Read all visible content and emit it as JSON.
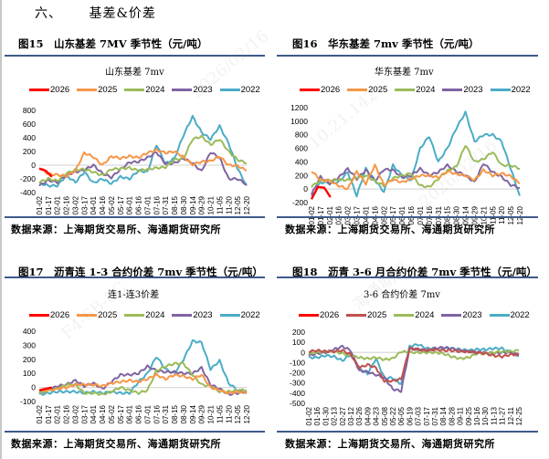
{
  "section": {
    "number": "六、",
    "title": "基差&价差"
  },
  "source_text": "数据来源：上海期货交易所、海通期货研究所",
  "legend_years": [
    "2026",
    "2025",
    "2024",
    "2023",
    "2022"
  ],
  "colors": {
    "2026": "#ff0000",
    "2025": "#f79646",
    "2025_alt": "#c0504d",
    "2024": "#9bbb59",
    "2023": "#8064a2",
    "2022": "#4bacc6",
    "zero_line": "#d9d9d9",
    "rule": "#3d5a8a"
  },
  "watermark": {
    "lines": [
      "2026/02/16",
      "10.21.142",
      "F4-6B-8C",
      "海通期货"
    ]
  },
  "chart_data": [
    {
      "id": "fig15",
      "figure_title": "图15　山东基差 7MV 季节性（元/吨）",
      "title": "山东基差 7mv",
      "type": "line",
      "xlabel": "",
      "ylabel": "",
      "ylim": [
        -400,
        800
      ],
      "yticks": [
        800,
        600,
        400,
        200,
        0,
        -200,
        -400
      ],
      "x_ticks": [
        "01-02",
        "01-17",
        "02-01",
        "02-16",
        "03-02",
        "03-17",
        "04-01",
        "04-16",
        "05-02",
        "05-17",
        "06-01",
        "06-16",
        "07-01",
        "07-16",
        "07-31",
        "08-15",
        "08-30",
        "09-14",
        "09-29",
        "10-21",
        "11-05",
        "11-20",
        "12-05",
        "12-20"
      ],
      "legend": "top",
      "grid": false,
      "series": [
        {
          "name": "2026",
          "values": [
            -50,
            -80,
            -170
          ]
        },
        {
          "name": "2025",
          "values": [
            -30,
            -130,
            -140,
            -160,
            -80,
            180,
            120,
            0,
            130,
            100,
            130,
            110,
            180,
            220,
            180,
            200,
            120,
            10,
            50,
            60,
            130,
            0,
            -10,
            -80
          ]
        },
        {
          "name": "2024",
          "values": [
            -250,
            -200,
            -230,
            -120,
            -70,
            -60,
            -100,
            -150,
            -60,
            -50,
            -40,
            -80,
            -60,
            -40,
            -30,
            80,
            100,
            380,
            420,
            300,
            380,
            200,
            80,
            30
          ]
        },
        {
          "name": "2023",
          "values": [
            -300,
            -220,
            -250,
            -140,
            -100,
            -70,
            0,
            -120,
            -180,
            -60,
            40,
            50,
            110,
            190,
            20,
            30,
            100,
            30,
            -90,
            190,
            110,
            -200,
            -200,
            -280
          ]
        },
        {
          "name": "2022",
          "values": [
            -260,
            -300,
            -300,
            -150,
            -250,
            -100,
            -260,
            -200,
            -270,
            -170,
            -200,
            -80,
            -100,
            300,
            20,
            100,
            440,
            710,
            480,
            380,
            570,
            320,
            -50,
            -300
          ]
        }
      ]
    },
    {
      "id": "fig16",
      "figure_title": "图16　华东基差 7mv 季节性（元/吨）",
      "title": "华东基差 7mv",
      "type": "line",
      "xlabel": "",
      "ylabel": "",
      "ylim": [
        -200,
        1200
      ],
      "yticks": [
        1200,
        1000,
        800,
        600,
        400,
        200,
        0,
        -200
      ],
      "x_ticks": [
        "01-02",
        "01-17",
        "02-01",
        "02-16",
        "03-02",
        "03-17",
        "04-01",
        "04-16",
        "05-02",
        "05-17",
        "06-01",
        "06-16",
        "07-01",
        "07-16",
        "07-31",
        "08-15",
        "08-30",
        "09-14",
        "09-29",
        "10-21",
        "11-05",
        "11-20",
        "12-05",
        "12-20"
      ],
      "legend": "top",
      "grid": false,
      "series": [
        {
          "name": "2026",
          "values": [
            -150,
            30,
            20,
            -120
          ]
        },
        {
          "name": "2025",
          "values": [
            270,
            130,
            120,
            50,
            0,
            260,
            80,
            350,
            60,
            140,
            100,
            150,
            200,
            200,
            170,
            260,
            220,
            200,
            130,
            280,
            200,
            230,
            190,
            80
          ]
        },
        {
          "name": "2024",
          "values": [
            40,
            120,
            130,
            140,
            130,
            170,
            200,
            120,
            50,
            160,
            200,
            230,
            50,
            30,
            150,
            270,
            330,
            650,
            400,
            440,
            550,
            350,
            350,
            300
          ]
        },
        {
          "name": "2023",
          "values": [
            -80,
            180,
            80,
            170,
            300,
            150,
            280,
            120,
            290,
            280,
            170,
            200,
            300,
            200,
            250,
            350,
            260,
            200,
            100,
            380,
            250,
            180,
            60,
            20
          ]
        },
        {
          "name": "2022",
          "values": [
            -120,
            100,
            90,
            100,
            250,
            -100,
            300,
            130,
            -40,
            350,
            200,
            130,
            600,
            780,
            400,
            600,
            900,
            1130,
            700,
            800,
            800,
            700,
            300,
            -100
          ]
        }
      ]
    },
    {
      "id": "fig17",
      "figure_title": "图17　沥青连 1-3 合约价差 7mv 季节性（元/吨）",
      "title": "连1-连3价差",
      "type": "line",
      "xlabel": "",
      "ylabel": "",
      "ylim": [
        -100,
        400
      ],
      "yticks": [
        400,
        300,
        200,
        100,
        0,
        -100
      ],
      "x_ticks": [
        "01-02",
        "01-17",
        "02-01",
        "02-16",
        "03-02",
        "03-17",
        "04-01",
        "04-16",
        "05-02",
        "05-17",
        "06-01",
        "06-16",
        "07-01",
        "07-16",
        "07-31",
        "08-15",
        "08-30",
        "09-14",
        "09-29",
        "10-21",
        "11-05",
        "11-20",
        "12-05",
        "12-20"
      ],
      "legend": "top",
      "grid": false,
      "series": [
        {
          "name": "2026",
          "values": [
            -20,
            -10,
            0
          ]
        },
        {
          "name": "2025",
          "values": [
            -20,
            -20,
            -10,
            0,
            20,
            20,
            20,
            10,
            30,
            40,
            50,
            40,
            60,
            90,
            60,
            90,
            80,
            60,
            90,
            0,
            -20,
            -40,
            -30,
            -40
          ]
        },
        {
          "name": "2024",
          "values": [
            -40,
            -20,
            -10,
            20,
            20,
            -40,
            -40,
            -50,
            -30,
            0,
            -20,
            -40,
            -20,
            120,
            150,
            170,
            170,
            90,
            20,
            10,
            -30,
            -30,
            -20,
            -20
          ]
        },
        {
          "name": "2023",
          "values": [
            -40,
            -20,
            10,
            20,
            50,
            10,
            30,
            -10,
            40,
            90,
            90,
            100,
            150,
            120,
            110,
            110,
            100,
            100,
            140,
            20,
            -10,
            -50,
            -40,
            -30
          ]
        },
        {
          "name": "2022",
          "values": [
            -50,
            -40,
            -30,
            -30,
            -30,
            -40,
            -30,
            -40,
            -30,
            -40,
            -40,
            40,
            100,
            220,
            130,
            100,
            200,
            330,
            320,
            130,
            190,
            30,
            -20,
            -40
          ]
        }
      ]
    },
    {
      "id": "fig18",
      "figure_title": "图18　沥青 3-6 月合约价差 7mv 季节性（元/吨）",
      "title": "3-6 合约价差 7mv",
      "type": "line",
      "xlabel": "",
      "ylabel": "",
      "ylim": [
        -500,
        200
      ],
      "yticks": [
        200,
        100,
        0,
        -100,
        -200,
        -300,
        -400,
        -500
      ],
      "x_ticks": [
        "01-02",
        "01-16",
        "01-30",
        "02-13",
        "02-27",
        "03-12",
        "03-26",
        "04-09",
        "04-23",
        "05-08",
        "05-22",
        "06-05",
        "06-19",
        "07-03",
        "07-17",
        "07-31",
        "08-14",
        "08-28",
        "09-11",
        "09-25",
        "10-16",
        "10-30",
        "11-13",
        "11-27",
        "12-11",
        "12-25"
      ],
      "legend": "top",
      "grid": false,
      "series": [
        {
          "name": "2026",
          "values": []
        },
        {
          "name": "2025",
          "values": [
            10,
            20,
            10,
            10,
            20,
            -20,
            -150,
            -120,
            -150,
            -280,
            -280,
            -260,
            40,
            30,
            20,
            30,
            20,
            20,
            10,
            10,
            0,
            -10,
            -30,
            -40,
            -20,
            -20
          ]
        },
        {
          "name": "2024",
          "values": [
            -10,
            0,
            10,
            10,
            -10,
            -30,
            -50,
            -60,
            -50,
            -70,
            -60,
            10,
            0,
            0,
            0,
            0,
            -10,
            -40,
            -60,
            -50,
            -10,
            -10,
            0,
            10,
            10,
            20
          ]
        },
        {
          "name": "2023",
          "values": [
            -30,
            -10,
            0,
            30,
            60,
            20,
            -180,
            -190,
            -220,
            -250,
            -360,
            -380,
            40,
            30,
            20,
            40,
            50,
            40,
            20,
            10,
            0,
            0,
            -10,
            0,
            0,
            -30
          ]
        },
        {
          "name": "2022",
          "values": [
            -50,
            -50,
            -30,
            -40,
            -80,
            -20,
            -150,
            -210,
            -60,
            -250,
            -250,
            -310,
            60,
            80,
            40,
            40,
            40,
            40,
            30,
            20,
            30,
            30,
            40,
            40,
            0,
            -30
          ]
        }
      ]
    }
  ]
}
